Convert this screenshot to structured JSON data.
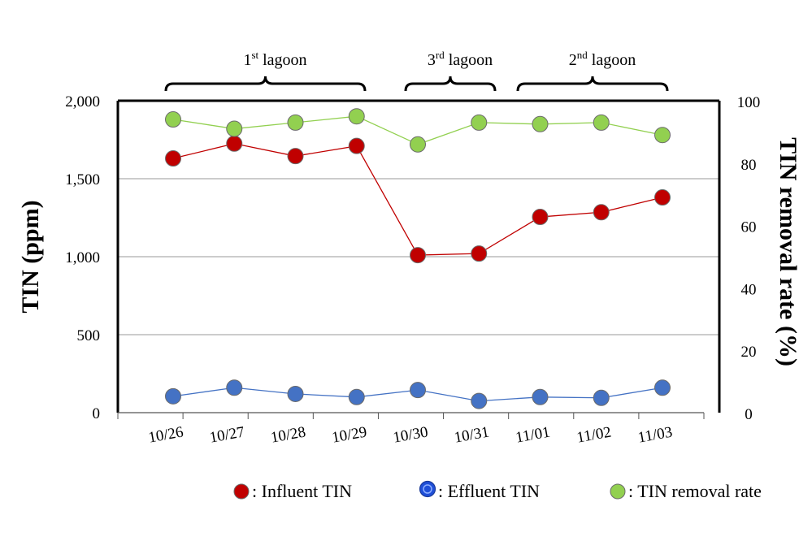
{
  "chart_data": {
    "type": "line",
    "categories": [
      "10/26",
      "10/27",
      "10/28",
      "10/29",
      "10/30",
      "10/31",
      "11/01",
      "11/02",
      "11/03"
    ],
    "ylabel": "TIN (ppm)",
    "y2label": "TIN removal rate (%)",
    "ylim": [
      0,
      2000
    ],
    "y2lim": [
      0,
      100
    ],
    "yticks": [
      "0",
      "500",
      "1,000",
      "1,500",
      "2,000"
    ],
    "y2ticks": [
      "0",
      "20",
      "40",
      "60",
      "80",
      "100"
    ],
    "grid": true,
    "legend_position": "bottom",
    "series": [
      {
        "name": "Influent TIN",
        "axis": "left",
        "color": "#c00000",
        "values": [
          1630,
          1725,
          1645,
          1710,
          1010,
          1020,
          1255,
          1285,
          1380
        ]
      },
      {
        "name": "Effluent TIN",
        "axis": "left",
        "color": "#4472c4",
        "values": [
          105,
          160,
          120,
          100,
          145,
          75,
          100,
          95,
          160
        ]
      },
      {
        "name": "TIN removal rate",
        "axis": "right",
        "color": "#92d050",
        "values": [
          94,
          91,
          93,
          95,
          86,
          93,
          92.5,
          93,
          89
        ]
      }
    ],
    "annotations": [
      {
        "label": "lagoon",
        "ordinal": "1",
        "suffix": "st",
        "from": "10/26",
        "to": "10/29"
      },
      {
        "label": "lagoon",
        "ordinal": "3",
        "suffix": "rd",
        "from": "10/30",
        "to": "10/31"
      },
      {
        "label": "lagoon",
        "ordinal": "2",
        "suffix": "nd",
        "from": "11/01",
        "to": "11/03"
      }
    ],
    "legend": [
      {
        "label": ": Influent TIN"
      },
      {
        "label": ": Effluent TIN"
      },
      {
        "label": ": TIN removal rate"
      }
    ]
  }
}
